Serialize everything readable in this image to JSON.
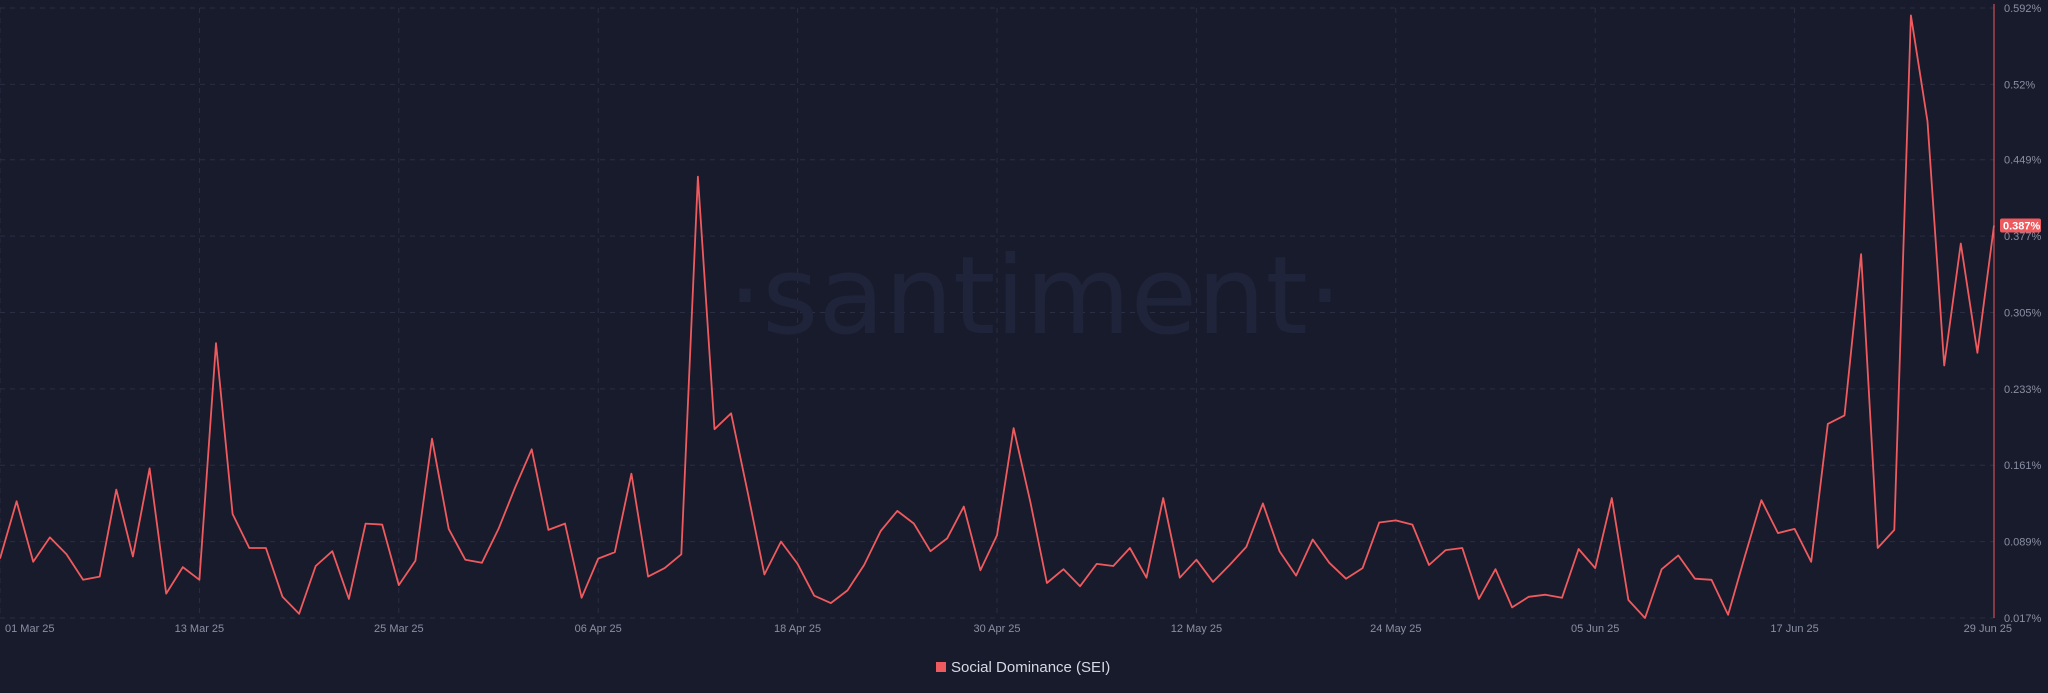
{
  "watermark": "·santiment·",
  "legend": {
    "label": "Social Dominance (SEI)"
  },
  "colors": {
    "background": "#181b2b",
    "series": "#ef5a5e",
    "grid": "#2a2e42",
    "axis_text": "#8a8fa3"
  },
  "current_value_label": "0.387%",
  "chart_data": {
    "type": "line",
    "title": "",
    "xlabel": "",
    "ylabel": "",
    "x_tick_labels": [
      "01 Mar 25",
      "13 Mar 25",
      "25 Mar 25",
      "06 Apr 25",
      "18 Apr 25",
      "30 Apr 25",
      "12 May 25",
      "24 May 25",
      "05 Jun 25",
      "17 Jun 25",
      "29 Jun 25"
    ],
    "y_tick_labels": [
      "0.592%",
      "0.52%",
      "0.449%",
      "0.377%",
      "0.305%",
      "0.233%",
      "0.161%",
      "0.089%",
      "0.017%"
    ],
    "y_ticks": [
      0.592,
      0.52,
      0.449,
      0.377,
      0.305,
      0.233,
      0.161,
      0.089,
      0.017
    ],
    "ylim": [
      0.017,
      0.592
    ],
    "grid": true,
    "legend_position": "bottom-center",
    "series": [
      {
        "name": "Social Dominance (SEI)",
        "values": [
          0.073,
          0.127,
          0.07,
          0.093,
          0.077,
          0.053,
          0.056,
          0.138,
          0.075,
          0.158,
          0.04,
          0.065,
          0.053,
          0.276,
          0.115,
          0.083,
          0.083,
          0.037,
          0.021,
          0.066,
          0.08,
          0.035,
          0.106,
          0.105,
          0.048,
          0.071,
          0.186,
          0.101,
          0.072,
          0.069,
          0.101,
          0.14,
          0.176,
          0.1,
          0.106,
          0.036,
          0.073,
          0.079,
          0.153,
          0.056,
          0.064,
          0.077,
          0.433,
          0.195,
          0.21,
          0.135,
          0.058,
          0.089,
          0.068,
          0.038,
          0.031,
          0.043,
          0.067,
          0.099,
          0.118,
          0.106,
          0.08,
          0.092,
          0.122,
          0.062,
          0.095,
          0.196,
          0.127,
          0.05,
          0.063,
          0.047,
          0.068,
          0.066,
          0.083,
          0.055,
          0.13,
          0.055,
          0.072,
          0.051,
          0.067,
          0.084,
          0.125,
          0.08,
          0.057,
          0.091,
          0.069,
          0.054,
          0.064,
          0.107,
          0.109,
          0.105,
          0.067,
          0.081,
          0.083,
          0.035,
          0.063,
          0.027,
          0.037,
          0.039,
          0.036,
          0.082,
          0.064,
          0.13,
          0.034,
          0.017,
          0.063,
          0.076,
          0.054,
          0.053,
          0.02,
          0.075,
          0.128,
          0.097,
          0.101,
          0.07,
          0.2,
          0.208,
          0.36,
          0.083,
          0.1,
          0.585,
          0.485,
          0.255,
          0.37,
          0.267,
          0.387
        ]
      }
    ]
  }
}
